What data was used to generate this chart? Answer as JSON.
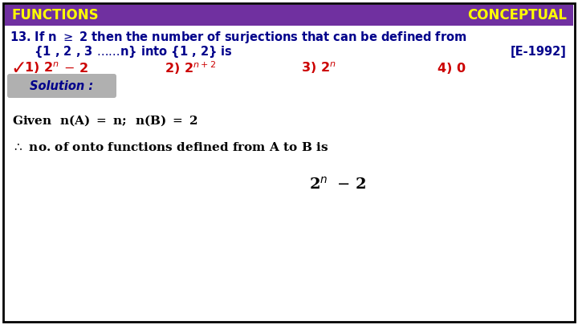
{
  "bg_color": "#ffffff",
  "border_color": "#000000",
  "header_bg": "#7030a0",
  "header_text_left": "FUNCTIONS",
  "header_text_right": "CONCEPTUAL",
  "header_text_color": "#ffff00",
  "question_color": "#00008b",
  "question_ref_color": "#00008b",
  "options_color": "#cc0000",
  "solution_bg": "#b0b0b0",
  "solution_text": "Solution :",
  "solution_text_color": "#00008b",
  "body_text_color": "#000000",
  "checkmark_color": "#cc0000",
  "fig_width": 7.2,
  "fig_height": 4.05,
  "dpi": 100
}
